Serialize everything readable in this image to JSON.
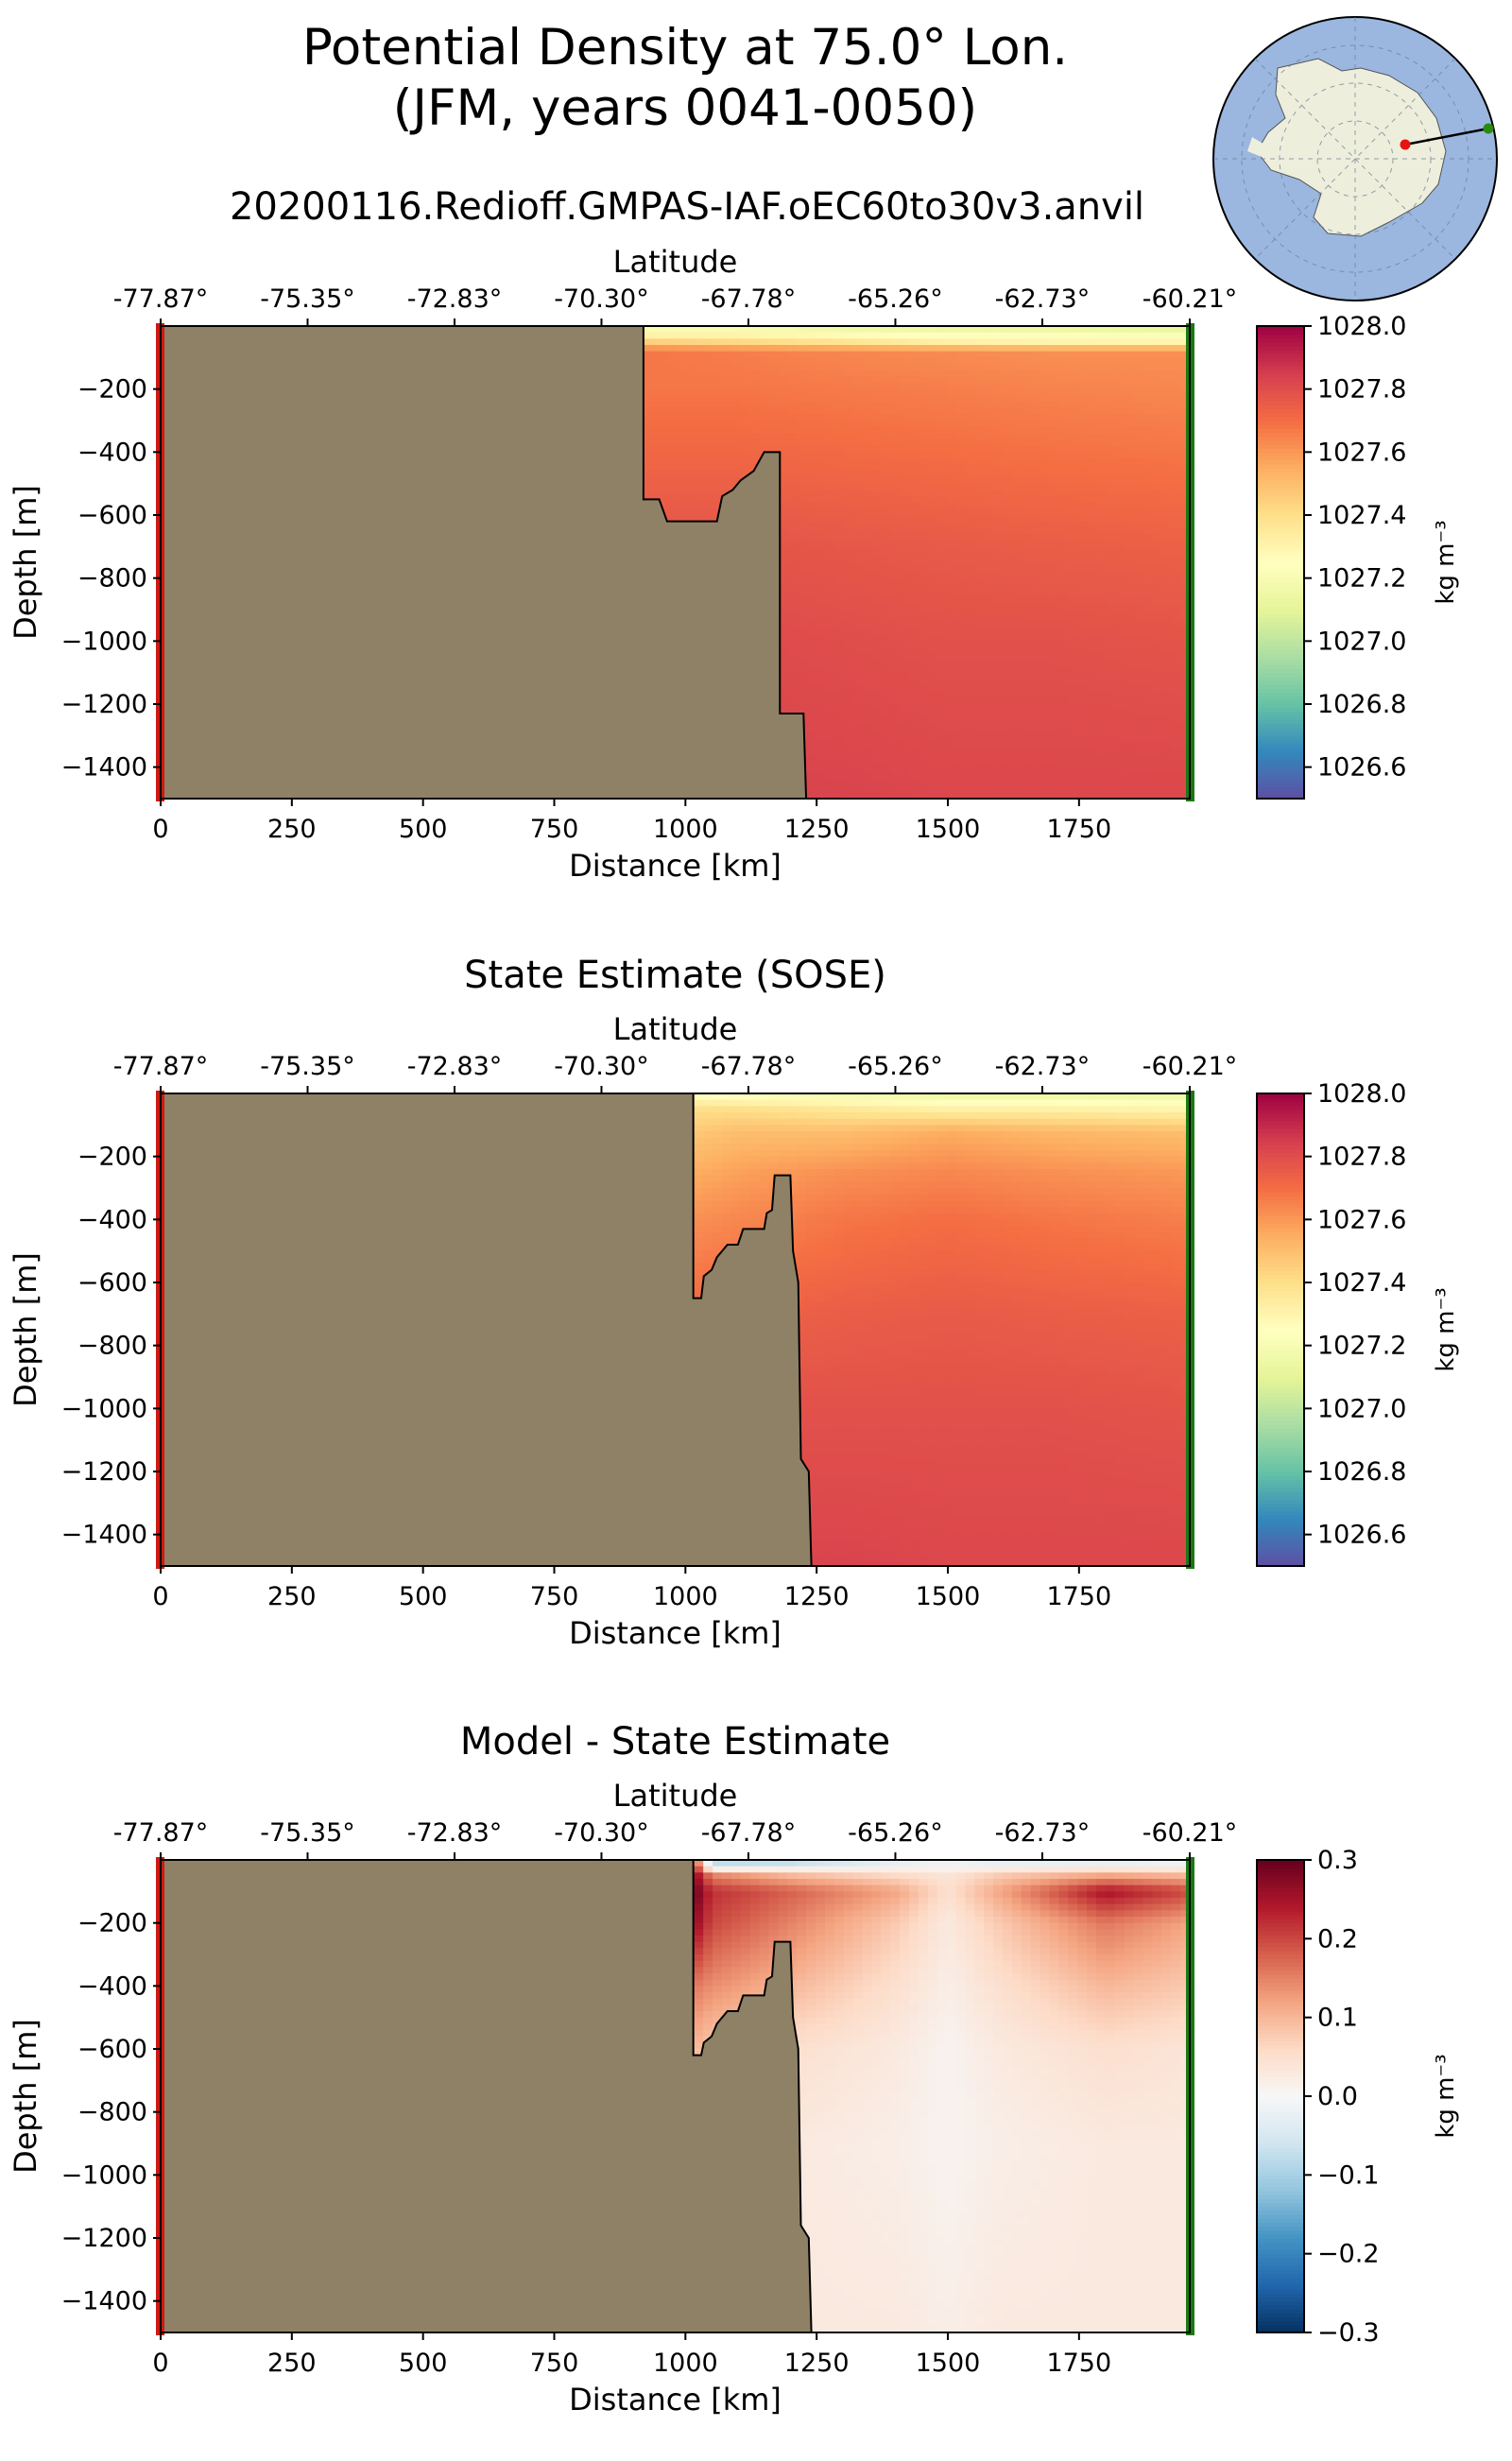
{
  "header": {
    "title_line1": "Potential Density at 75.0° Lon.",
    "title_line2": "(JFM, years 0041-0050)",
    "run_name": "20200116.Redioff.GMPAS-IAF.oEC60to30v3.anvil"
  },
  "inset_map": {
    "region": "Antarctica polar stereographic",
    "start_marker_color": "#e8120e",
    "end_marker_color": "#2a8a10"
  },
  "colors": {
    "land": "#8f8166",
    "start_line": "#cc1a12",
    "end_line": "#1a7a12"
  },
  "chart_data": [
    {
      "type": "heatmap",
      "panel": "model",
      "title": "",
      "xlabel": "Distance [km]",
      "ylabel": "Depth [m]",
      "top_xlabel": "Latitude",
      "xlim": [
        0,
        1961
      ],
      "ylim": [
        -1500,
        0
      ],
      "xticks": [
        0,
        250,
        500,
        750,
        1000,
        1250,
        1500,
        1750
      ],
      "xtick_labels": [
        "0",
        "250",
        "500",
        "750",
        "1000",
        "1250",
        "1500",
        "1750"
      ],
      "yticks": [
        -200,
        -400,
        -600,
        -800,
        -1000,
        -1200,
        -1400
      ],
      "ytick_labels": [
        "−200",
        "−400",
        "−600",
        "−800",
        "−1000",
        "−1200",
        "−1400"
      ],
      "top_ticks": [
        0,
        280,
        560,
        840,
        1120,
        1400,
        1680,
        1961
      ],
      "top_tick_labels": [
        "-77.87°",
        "-75.35°",
        "-72.83°",
        "-70.30°",
        "-67.78°",
        "-65.26°",
        "-62.73°",
        "-60.21°"
      ],
      "colorbar": {
        "label": "kg m⁻³",
        "cmap": "Spectral_r",
        "vmin": 1026.5,
        "vmax": 1028.0,
        "ticks": [
          1026.6,
          1026.8,
          1027.0,
          1027.2,
          1027.4,
          1027.6,
          1027.8,
          1028.0
        ],
        "tick_labels": [
          "1026.6",
          "1026.8",
          "1027.0",
          "1027.2",
          "1027.4",
          "1027.6",
          "1027.8",
          "1028.0"
        ]
      },
      "bathymetry": [
        [
          0,
          0
        ],
        [
          920,
          0
        ],
        [
          920,
          -550
        ],
        [
          950,
          -550
        ],
        [
          965,
          -620
        ],
        [
          1060,
          -620
        ],
        [
          1070,
          -540
        ],
        [
          1090,
          -520
        ],
        [
          1105,
          -490
        ],
        [
          1130,
          -460
        ],
        [
          1150,
          -400
        ],
        [
          1180,
          -400
        ],
        [
          1180,
          -1230
        ],
        [
          1225,
          -1230
        ],
        [
          1230,
          -1500
        ],
        [
          0,
          -1500
        ]
      ],
      "field": {
        "x": [
          920,
          1100,
          1300,
          1500,
          1700,
          1961
        ],
        "depth": [
          0,
          20,
          50,
          80,
          200,
          400,
          700,
          1000,
          1500
        ],
        "values": [
          [
            1027.15,
            1027.15,
            1027.12,
            1027.1,
            1027.1,
            1027.08
          ],
          [
            1027.25,
            1027.25,
            1027.22,
            1027.2,
            1027.2,
            1027.18
          ],
          [
            1027.45,
            1027.42,
            1027.38,
            1027.32,
            1027.3,
            1027.3
          ],
          [
            1027.68,
            1027.66,
            1027.64,
            1027.63,
            1027.62,
            1027.62
          ],
          [
            1027.68,
            1027.68,
            1027.67,
            1027.66,
            1027.65,
            1027.64
          ],
          [
            1027.72,
            1027.72,
            1027.71,
            1027.7,
            1027.69,
            1027.68
          ],
          [
            1027.78,
            1027.78,
            1027.77,
            1027.76,
            1027.75,
            1027.74
          ],
          [
            1027.81,
            1027.81,
            1027.8,
            1027.79,
            1027.79,
            1027.78
          ],
          [
            1027.83,
            1027.83,
            1027.83,
            1027.82,
            1027.82,
            1027.82
          ]
        ]
      }
    },
    {
      "type": "heatmap",
      "panel": "sose",
      "title": "State Estimate (SOSE)",
      "xlabel": "Distance [km]",
      "ylabel": "Depth [m]",
      "top_xlabel": "Latitude",
      "xlim": [
        0,
        1961
      ],
      "ylim": [
        -1500,
        0
      ],
      "xticks": [
        0,
        250,
        500,
        750,
        1000,
        1250,
        1500,
        1750
      ],
      "xtick_labels": [
        "0",
        "250",
        "500",
        "750",
        "1000",
        "1250",
        "1500",
        "1750"
      ],
      "yticks": [
        -200,
        -400,
        -600,
        -800,
        -1000,
        -1200,
        -1400
      ],
      "ytick_labels": [
        "−200",
        "−400",
        "−600",
        "−800",
        "−1000",
        "−1200",
        "−1400"
      ],
      "top_ticks": [
        0,
        280,
        560,
        840,
        1120,
        1400,
        1680,
        1961
      ],
      "top_tick_labels": [
        "-77.87°",
        "-75.35°",
        "-72.83°",
        "-70.30°",
        "-67.78°",
        "-65.26°",
        "-62.73°",
        "-60.21°"
      ],
      "colorbar": {
        "label": "kg m⁻³",
        "cmap": "Spectral_r",
        "vmin": 1026.5,
        "vmax": 1028.0,
        "ticks": [
          1026.6,
          1026.8,
          1027.0,
          1027.2,
          1027.4,
          1027.6,
          1027.8,
          1028.0
        ],
        "tick_labels": [
          "1026.6",
          "1026.8",
          "1027.0",
          "1027.2",
          "1027.4",
          "1027.6",
          "1027.8",
          "1028.0"
        ]
      },
      "bathymetry": [
        [
          0,
          0
        ],
        [
          1015,
          0
        ],
        [
          1015,
          -650
        ],
        [
          1030,
          -650
        ],
        [
          1035,
          -580
        ],
        [
          1050,
          -560
        ],
        [
          1060,
          -520
        ],
        [
          1080,
          -480
        ],
        [
          1100,
          -480
        ],
        [
          1110,
          -430
        ],
        [
          1150,
          -430
        ],
        [
          1155,
          -380
        ],
        [
          1165,
          -370
        ],
        [
          1170,
          -260
        ],
        [
          1200,
          -260
        ],
        [
          1205,
          -500
        ],
        [
          1215,
          -600
        ],
        [
          1220,
          -1160
        ],
        [
          1235,
          -1200
        ],
        [
          1240,
          -1500
        ],
        [
          0,
          -1500
        ]
      ],
      "field": {
        "x": [
          1015,
          1100,
          1300,
          1500,
          1700,
          1961
        ],
        "depth": [
          0,
          20,
          50,
          120,
          250,
          400,
          700,
          1000,
          1500
        ],
        "values": [
          [
            1027.22,
            1027.2,
            1027.15,
            1027.12,
            1027.12,
            1027.12
          ],
          [
            1027.3,
            1027.28,
            1027.25,
            1027.22,
            1027.22,
            1027.2
          ],
          [
            1027.4,
            1027.4,
            1027.36,
            1027.32,
            1027.32,
            1027.3
          ],
          [
            1027.47,
            1027.5,
            1027.5,
            1027.55,
            1027.52,
            1027.5
          ],
          [
            1027.55,
            1027.58,
            1027.62,
            1027.64,
            1027.62,
            1027.6
          ],
          [
            1027.62,
            1027.64,
            1027.68,
            1027.7,
            1027.68,
            1027.66
          ],
          [
            1027.72,
            1027.73,
            1027.75,
            1027.76,
            1027.75,
            1027.74
          ],
          [
            1027.79,
            1027.79,
            1027.79,
            1027.79,
            1027.79,
            1027.78
          ],
          [
            1027.83,
            1027.83,
            1027.83,
            1027.82,
            1027.82,
            1027.82
          ]
        ]
      }
    },
    {
      "type": "heatmap",
      "panel": "bias",
      "title": "Model - State Estimate",
      "xlabel": "Distance [km]",
      "ylabel": "Depth [m]",
      "top_xlabel": "Latitude",
      "xlim": [
        0,
        1961
      ],
      "ylim": [
        -1500,
        0
      ],
      "xticks": [
        0,
        250,
        500,
        750,
        1000,
        1250,
        1500,
        1750
      ],
      "xtick_labels": [
        "0",
        "250",
        "500",
        "750",
        "1000",
        "1250",
        "1500",
        "1750"
      ],
      "yticks": [
        -200,
        -400,
        -600,
        -800,
        -1000,
        -1200,
        -1400
      ],
      "ytick_labels": [
        "−200",
        "−400",
        "−600",
        "−800",
        "−1000",
        "−1200",
        "−1400"
      ],
      "top_ticks": [
        0,
        280,
        560,
        840,
        1120,
        1400,
        1680,
        1961
      ],
      "top_tick_labels": [
        "-77.87°",
        "-75.35°",
        "-72.83°",
        "-70.30°",
        "-67.78°",
        "-65.26°",
        "-62.73°",
        "-60.21°"
      ],
      "colorbar": {
        "label": "kg m⁻³",
        "cmap": "RdBu_r",
        "vmin": -0.3,
        "vmax": 0.3,
        "ticks": [
          -0.3,
          -0.2,
          -0.1,
          0.0,
          0.1,
          0.2,
          0.3
        ],
        "tick_labels": [
          "−0.3",
          "−0.2",
          "−0.1",
          "0.0",
          "0.1",
          "0.2",
          "0.3"
        ]
      },
      "bathymetry": [
        [
          0,
          0
        ],
        [
          1015,
          0
        ],
        [
          1015,
          -620
        ],
        [
          1030,
          -620
        ],
        [
          1035,
          -580
        ],
        [
          1050,
          -560
        ],
        [
          1060,
          -520
        ],
        [
          1080,
          -480
        ],
        [
          1100,
          -480
        ],
        [
          1110,
          -430
        ],
        [
          1150,
          -430
        ],
        [
          1155,
          -380
        ],
        [
          1165,
          -370
        ],
        [
          1170,
          -260
        ],
        [
          1200,
          -260
        ],
        [
          1205,
          -500
        ],
        [
          1215,
          -600
        ],
        [
          1220,
          -1160
        ],
        [
          1235,
          -1200
        ],
        [
          1240,
          -1500
        ],
        [
          0,
          -1500
        ]
      ],
      "field": {
        "x": [
          1015,
          1050,
          1200,
          1400,
          1500,
          1600,
          1800,
          1961
        ],
        "depth": [
          0,
          20,
          50,
          100,
          200,
          400,
          600,
          900,
          1500
        ],
        "values": [
          [
            0.2,
            -0.1,
            -0.12,
            -0.05,
            -0.03,
            -0.05,
            -0.05,
            -0.03
          ],
          [
            0.25,
            -0.05,
            -0.02,
            0.0,
            0.0,
            0.0,
            0.0,
            0.0
          ],
          [
            0.28,
            0.15,
            0.1,
            0.06,
            0.04,
            0.08,
            0.12,
            0.1
          ],
          [
            0.3,
            0.22,
            0.18,
            0.12,
            0.05,
            0.12,
            0.25,
            0.2
          ],
          [
            0.27,
            0.2,
            0.15,
            0.08,
            0.03,
            0.08,
            0.16,
            0.12
          ],
          [
            0.16,
            0.14,
            0.1,
            0.05,
            0.02,
            0.05,
            0.1,
            0.08
          ],
          [
            0.1,
            0.08,
            0.05,
            0.03,
            0.01,
            0.03,
            0.05,
            0.04
          ],
          [
            0.04,
            0.03,
            0.03,
            0.02,
            0.01,
            0.02,
            0.03,
            0.03
          ],
          [
            0.03,
            0.03,
            0.03,
            0.03,
            0.02,
            0.03,
            0.03,
            0.03
          ]
        ]
      }
    }
  ]
}
